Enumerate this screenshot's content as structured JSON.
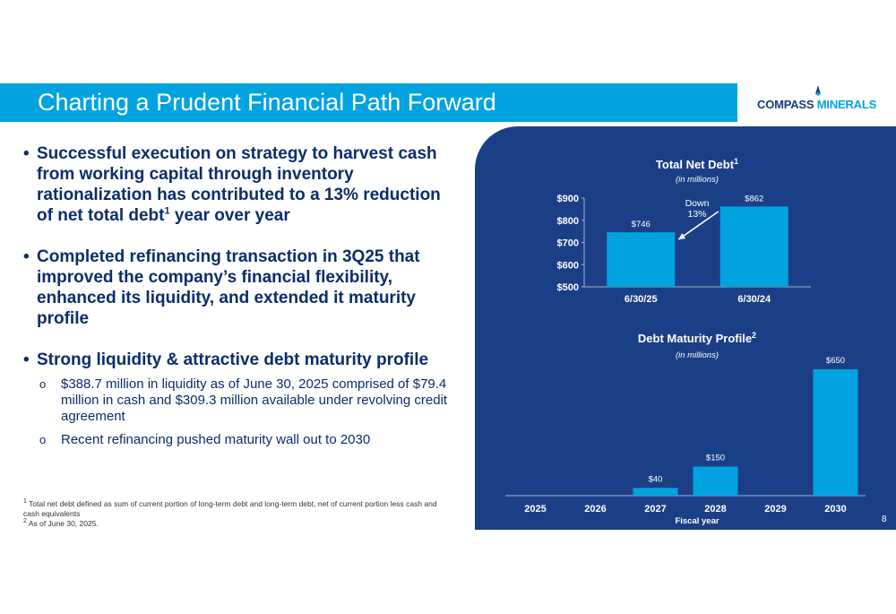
{
  "header": {
    "title": "Charting a Prudent Financial Path Forward",
    "logo_part1": "COMPASS",
    "logo_part2": "MINERALS"
  },
  "bullets": [
    {
      "text": "Successful execution on strategy to harvest cash from working capital through inventory rationalization has contributed to a 13% reduction of net total debt",
      "sup": "1",
      "tail": " year over year"
    },
    {
      "text": "Completed refinancing transaction in 3Q25 that improved the company’s financial flexibility, enhanced its liquidity, and extended it maturity profile",
      "sup": "",
      "tail": ""
    },
    {
      "text": "Strong liquidity & attractive debt maturity profile",
      "sup": "",
      "tail": ""
    }
  ],
  "sub_bullets": [
    "$388.7 million in liquidity as of June 30, 2025 comprised of $79.4 million in cash and $309.3 million available under revolving credit agreement",
    "Recent refinancing pushed maturity wall out to 2030"
  ],
  "footnotes": {
    "note1": "Total net debt defined as sum of current portion of long-term debt and long-term debt, net of current portion less cash and cash equivalents",
    "note2": "As of June 30, 2025."
  },
  "page_number": "8",
  "colors": {
    "panel": "#1b3f87",
    "bar": "#00a3e0",
    "title_bar": "#00a3e0",
    "text_dark": "#0b2d6b"
  },
  "chart_data": [
    {
      "type": "bar",
      "title": "Total Net Debt",
      "title_sup": "1",
      "subtitle": "(in millions)",
      "categories": [
        "6/30/25",
        "6/30/24"
      ],
      "values": [
        746,
        862
      ],
      "value_labels": [
        "$746",
        "$862"
      ],
      "ylim": [
        500,
        900
      ],
      "yticks": [
        500,
        600,
        700,
        800,
        900
      ],
      "ytick_labels": [
        "$500",
        "$600",
        "$700",
        "$800",
        "$900"
      ],
      "annotation": {
        "line1": "Down",
        "line2": "13%"
      }
    },
    {
      "type": "bar",
      "title": "Debt Maturity Profile",
      "title_sup": "2",
      "subtitle": "(in millions)",
      "xlabel": "Fiscal year",
      "categories": [
        "2025",
        "2026",
        "2027",
        "2028",
        "2029",
        "2030"
      ],
      "values": [
        0,
        0,
        40,
        150,
        0,
        650
      ],
      "value_labels": [
        "",
        "",
        "$40",
        "$150",
        "",
        "$650"
      ],
      "ylim": [
        0,
        650
      ]
    }
  ]
}
